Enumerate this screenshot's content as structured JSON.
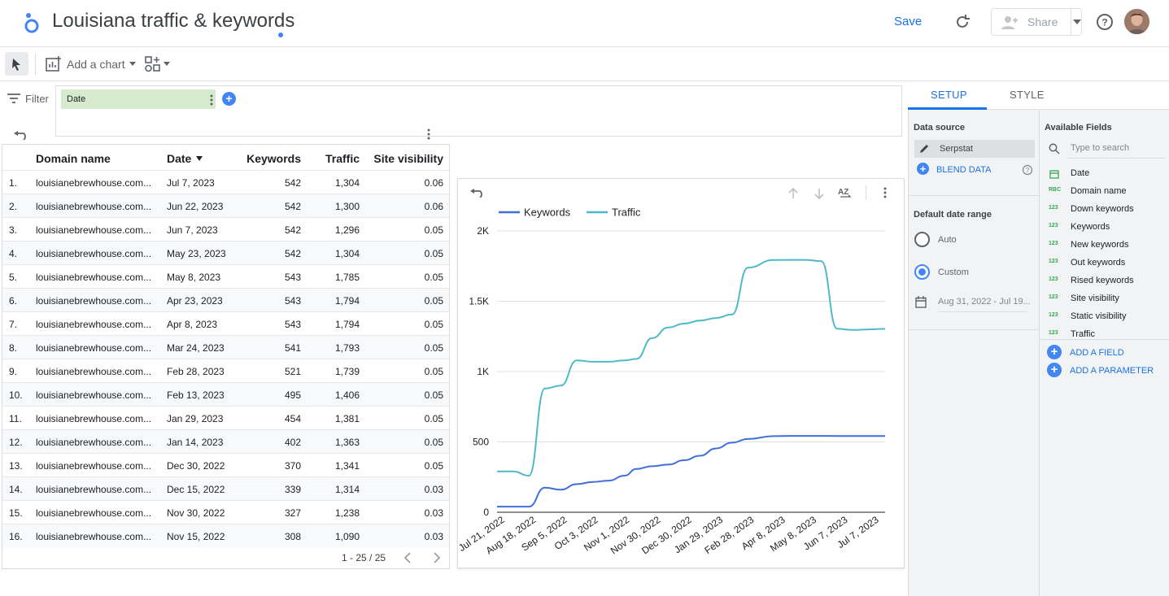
{
  "header": {
    "title": "Louisiana traffic & keywords",
    "save_label": "Save",
    "share_label": "Share"
  },
  "toolbar": {
    "add_chart_label": "Add a chart"
  },
  "filter": {
    "label": "Filter",
    "date_chip": "Date"
  },
  "table": {
    "headers": [
      "Domain name",
      "Date",
      "Keywords",
      "Traffic",
      "Site visibility"
    ],
    "rows": [
      [
        "1.",
        "louisianebrewhouse.com...",
        "Jul 7, 2023",
        "542",
        "1,304",
        "0.06"
      ],
      [
        "2.",
        "louisianebrewhouse.com...",
        "Jun 22, 2023",
        "542",
        "1,300",
        "0.06"
      ],
      [
        "3.",
        "louisianebrewhouse.com...",
        "Jun 7, 2023",
        "542",
        "1,296",
        "0.05"
      ],
      [
        "4.",
        "louisianebrewhouse.com...",
        "May 23, 2023",
        "542",
        "1,304",
        "0.05"
      ],
      [
        "5.",
        "louisianebrewhouse.com...",
        "May 8, 2023",
        "543",
        "1,785",
        "0.05"
      ],
      [
        "6.",
        "louisianebrewhouse.com...",
        "Apr 23, 2023",
        "543",
        "1,794",
        "0.05"
      ],
      [
        "7.",
        "louisianebrewhouse.com...",
        "Apr 8, 2023",
        "543",
        "1,794",
        "0.05"
      ],
      [
        "8.",
        "louisianebrewhouse.com...",
        "Mar 24, 2023",
        "541",
        "1,793",
        "0.05"
      ],
      [
        "9.",
        "louisianebrewhouse.com...",
        "Feb 28, 2023",
        "521",
        "1,739",
        "0.05"
      ],
      [
        "10.",
        "louisianebrewhouse.com...",
        "Feb 13, 2023",
        "495",
        "1,406",
        "0.05"
      ],
      [
        "11.",
        "louisianebrewhouse.com...",
        "Jan 29, 2023",
        "454",
        "1,381",
        "0.05"
      ],
      [
        "12.",
        "louisianebrewhouse.com...",
        "Jan 14, 2023",
        "402",
        "1,363",
        "0.05"
      ],
      [
        "13.",
        "louisianebrewhouse.com...",
        "Dec 30, 2022",
        "370",
        "1,341",
        "0.05"
      ],
      [
        "14.",
        "louisianebrewhouse.com...",
        "Dec 15, 2022",
        "339",
        "1,314",
        "0.03"
      ],
      [
        "15.",
        "louisianebrewhouse.com...",
        "Nov 30, 2022",
        "327",
        "1,238",
        "0.03"
      ],
      [
        "16.",
        "louisianebrewhouse.com...",
        "Nov 15, 2022",
        "308",
        "1,090",
        "0.03"
      ]
    ],
    "pager": "1 - 25 / 25"
  },
  "chart_data": {
    "type": "line",
    "title": "",
    "xlabel": "",
    "ylabel": "",
    "ylim": [
      0,
      2000
    ],
    "yticks": [
      "0",
      "500",
      "1K",
      "1.5K",
      "2K"
    ],
    "xtick_labels": [
      "Jul 21, 2022",
      "Aug 18, 2022",
      "Sep 5, 2022",
      "Oct 3, 2022",
      "Nov 1, 2022",
      "Nov 30, 2022",
      "Dec 30, 2022",
      "Jan 29, 2023",
      "Feb 28, 2023",
      "Apr 8, 2023",
      "May 8, 2023",
      "Jun 7, 2023",
      "Jul 7, 2023"
    ],
    "legend_position": "top-left",
    "x": [
      "2022-07-07",
      "2022-07-22",
      "2022-08-06",
      "2022-08-21",
      "2022-09-05",
      "2022-09-20",
      "2022-10-05",
      "2022-10-20",
      "2022-11-04",
      "2022-11-15",
      "2022-11-30",
      "2022-12-15",
      "2022-12-30",
      "2023-01-14",
      "2023-01-29",
      "2023-02-13",
      "2023-02-28",
      "2023-03-24",
      "2023-04-08",
      "2023-04-23",
      "2023-05-08",
      "2023-05-23",
      "2023-06-07",
      "2023-06-22",
      "2023-07-07"
    ],
    "series": [
      {
        "name": "Keywords",
        "color": "#3f6fd8",
        "values": [
          40,
          40,
          40,
          175,
          160,
          200,
          215,
          225,
          260,
          308,
          327,
          339,
          370,
          402,
          454,
          495,
          521,
          541,
          543,
          543,
          543,
          542,
          542,
          542,
          542
        ]
      },
      {
        "name": "Traffic",
        "color": "#4fb8c9",
        "values": [
          290,
          290,
          260,
          880,
          900,
          1080,
          1070,
          1070,
          1080,
          1090,
          1238,
          1314,
          1341,
          1363,
          1381,
          1406,
          1739,
          1793,
          1794,
          1794,
          1785,
          1304,
          1296,
          1300,
          1304
        ]
      }
    ]
  },
  "panel": {
    "tabs": [
      "SETUP",
      "STYLE"
    ],
    "data_source_label": "Data source",
    "data_source_name": "Serpstat",
    "blend_data": "BLEND DATA",
    "date_range_label": "Default date range",
    "auto_label": "Auto",
    "custom_label": "Custom",
    "date_range_value": "Aug 31, 2022 - Jul 19..."
  },
  "fields": {
    "title": "Available Fields",
    "search_placeholder": "Type to search",
    "items": [
      {
        "type": "date",
        "icon": "",
        "label": "Date"
      },
      {
        "type": "text",
        "icon": "RBC",
        "label": "Domain name"
      },
      {
        "type": "number",
        "icon": "123",
        "label": "Down keywords"
      },
      {
        "type": "number",
        "icon": "123",
        "label": "Keywords"
      },
      {
        "type": "number",
        "icon": "123",
        "label": "New keywords"
      },
      {
        "type": "number",
        "icon": "123",
        "label": "Out keywords"
      },
      {
        "type": "number",
        "icon": "123",
        "label": "Rised keywords"
      },
      {
        "type": "number",
        "icon": "123",
        "label": "Site visibility"
      },
      {
        "type": "number",
        "icon": "123",
        "label": "Static visibility"
      },
      {
        "type": "number",
        "icon": "123",
        "label": "Traffic"
      }
    ],
    "add_field": "ADD A FIELD",
    "add_parameter": "ADD A PARAMETER"
  }
}
